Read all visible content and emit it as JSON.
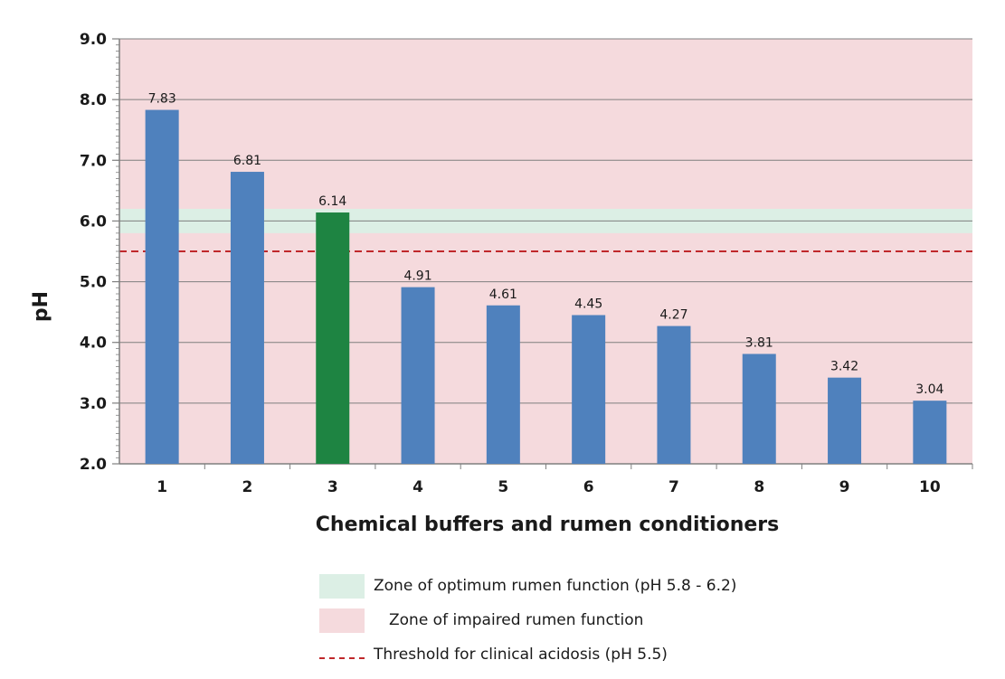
{
  "chart_data": {
    "type": "bar",
    "categories": [
      "1",
      "2",
      "3",
      "4",
      "5",
      "6",
      "7",
      "8",
      "9",
      "10"
    ],
    "values": [
      7.83,
      6.81,
      6.14,
      4.91,
      4.61,
      4.45,
      4.27,
      3.81,
      3.42,
      3.04
    ],
    "data_labels": [
      "7.83",
      "6.81",
      "6.14",
      "4.91",
      "4.61",
      "4.45",
      "4.27",
      "3.81",
      "3.42",
      "3.04"
    ],
    "highlight_index": 2,
    "bar_color": "#4f81bd",
    "highlight_color": "#1e8442",
    "ylabel": "pH",
    "xlabel": "Chemical buffers and rumen conditioners",
    "ylim": [
      2.0,
      9.0
    ],
    "yticks": [
      "2.0",
      "3.0",
      "4.0",
      "5.0",
      "6.0",
      "7.0",
      "8.0",
      "9.0"
    ],
    "grid": true,
    "zones": [
      {
        "from": 5.8,
        "to": 6.2,
        "color": "#dcefe5",
        "label": "Zone of optimum rumen function (pH 5.8 - 6.2)"
      },
      {
        "from": 2.0,
        "to": 9.0,
        "color": "#f5dadd",
        "label": "Zone of impaired rumen function"
      }
    ],
    "threshold": {
      "value": 5.5,
      "color": "#c0282b",
      "label": "Threshold for clinical acidosis (pH 5.5)"
    },
    "legend_placement": "bottom"
  }
}
